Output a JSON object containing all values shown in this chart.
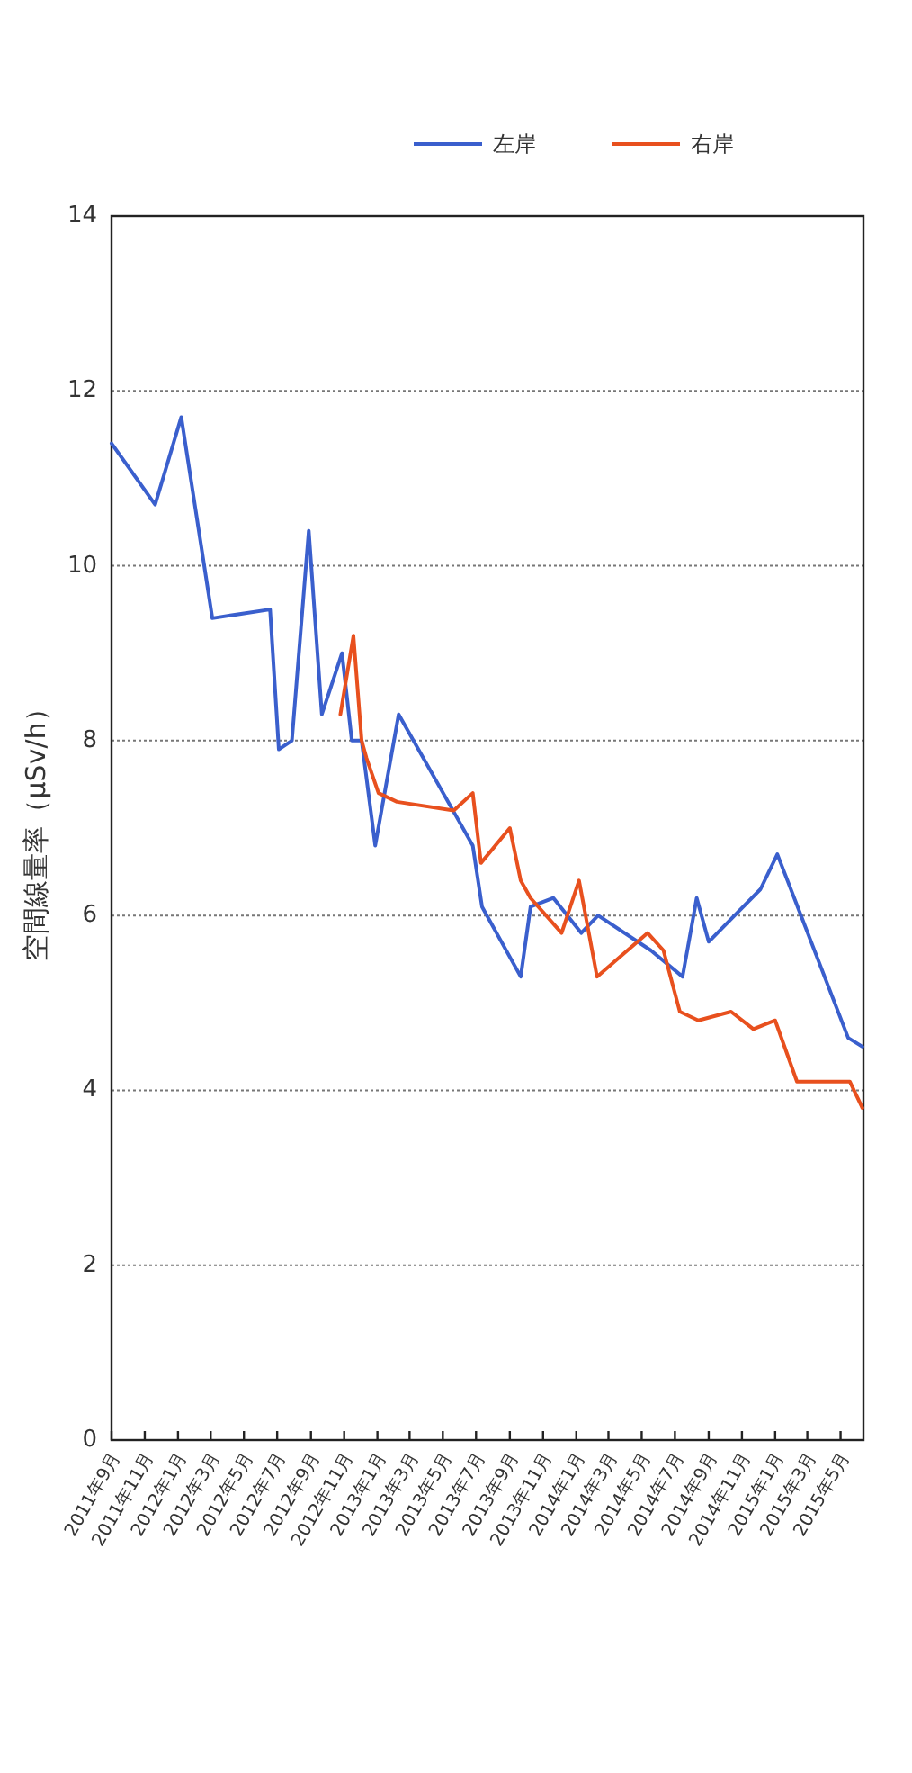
{
  "chart_data": {
    "type": "line",
    "ylabel": "空間線量率（μSv/h）",
    "legend": "top",
    "grid": "y",
    "xlim": [
      "2011-09-01",
      "2015-06-12"
    ],
    "xticks": [
      {
        "value": "2011-09",
        "label": "2011年9月"
      },
      {
        "value": "2011-11",
        "label": "2011年11月"
      },
      {
        "value": "2012-01",
        "label": "2012年1月"
      },
      {
        "value": "2012-03",
        "label": "2012年3月"
      },
      {
        "value": "2012-05",
        "label": "2012年5月"
      },
      {
        "value": "2012-07",
        "label": "2012年7月"
      },
      {
        "value": "2012-09",
        "label": "2012年9月"
      },
      {
        "value": "2012-11",
        "label": "2012年11月"
      },
      {
        "value": "2013-01",
        "label": "2013年1月"
      },
      {
        "value": "2013-03",
        "label": "2013年3月"
      },
      {
        "value": "2013-05",
        "label": "2013年5月"
      },
      {
        "value": "2013-07",
        "label": "2013年7月"
      },
      {
        "value": "2013-09",
        "label": "2013年9月"
      },
      {
        "value": "2013-11",
        "label": "2013年11月"
      },
      {
        "value": "2014-01",
        "label": "2014年1月"
      },
      {
        "value": "2014-03",
        "label": "2014年3月"
      },
      {
        "value": "2014-05",
        "label": "2014年5月"
      },
      {
        "value": "2014-07",
        "label": "2014年7月"
      },
      {
        "value": "2014-09",
        "label": "2014年9月"
      },
      {
        "value": "2014-11",
        "label": "2014年11月"
      },
      {
        "value": "2015-01",
        "label": "2015年1月"
      },
      {
        "value": "2015-03",
        "label": "2015年3月"
      },
      {
        "value": "2015-05",
        "label": "2015年5月"
      }
    ],
    "ylim": [
      0,
      14
    ],
    "yticks": [
      0,
      2,
      4,
      6,
      8,
      10,
      12,
      14
    ],
    "series": [
      {
        "name": "左岸",
        "color": "#3a5fcd",
        "x": [
          "2011-09-01",
          "2011-11-20",
          "2012-01-07",
          "2012-03-04",
          "2012-06-18",
          "2012-07-04",
          "2012-07-28",
          "2012-08-28",
          "2012-09-21",
          "2012-10-28",
          "2012-11-15",
          "2012-12-03",
          "2012-12-28",
          "2013-02-09",
          "2013-06-25",
          "2013-07-12",
          "2013-09-21",
          "2013-10-09",
          "2013-11-20",
          "2014-01-10",
          "2014-02-10",
          "2014-05-18",
          "2014-07-15",
          "2014-08-10",
          "2014-09-01",
          "2014-12-05",
          "2015-01-05",
          "2015-05-15",
          "2015-06-10"
        ],
        "values": [
          11.4,
          10.7,
          11.7,
          9.4,
          9.5,
          7.9,
          8.0,
          10.4,
          8.3,
          9.0,
          8.0,
          8.0,
          6.8,
          8.3,
          6.8,
          6.1,
          5.3,
          6.1,
          6.2,
          5.8,
          6.0,
          5.6,
          5.3,
          6.2,
          5.7,
          6.3,
          6.7,
          4.6,
          4.5
        ]
      },
      {
        "name": "右岸",
        "color": "#e8501e",
        "x": [
          "2012-10-25",
          "2012-11-18",
          "2012-12-03",
          "2012-12-12",
          "2013-01-03",
          "2013-02-06",
          "2013-05-21",
          "2013-06-25",
          "2013-07-10",
          "2013-09-01",
          "2013-09-21",
          "2013-10-09",
          "2013-12-05",
          "2014-01-06",
          "2014-02-08",
          "2014-05-12",
          "2014-06-10",
          "2014-07-10",
          "2014-08-13",
          "2014-10-12",
          "2014-11-22",
          "2015-01-01",
          "2015-02-10",
          "2015-05-18",
          "2015-06-10"
        ],
        "values": [
          8.3,
          9.2,
          8.0,
          7.8,
          7.4,
          7.3,
          7.2,
          7.4,
          6.6,
          7.0,
          6.4,
          6.2,
          5.8,
          6.4,
          5.3,
          5.8,
          5.6,
          4.9,
          4.8,
          4.9,
          4.7,
          4.8,
          4.1,
          4.1,
          3.8
        ]
      }
    ]
  }
}
